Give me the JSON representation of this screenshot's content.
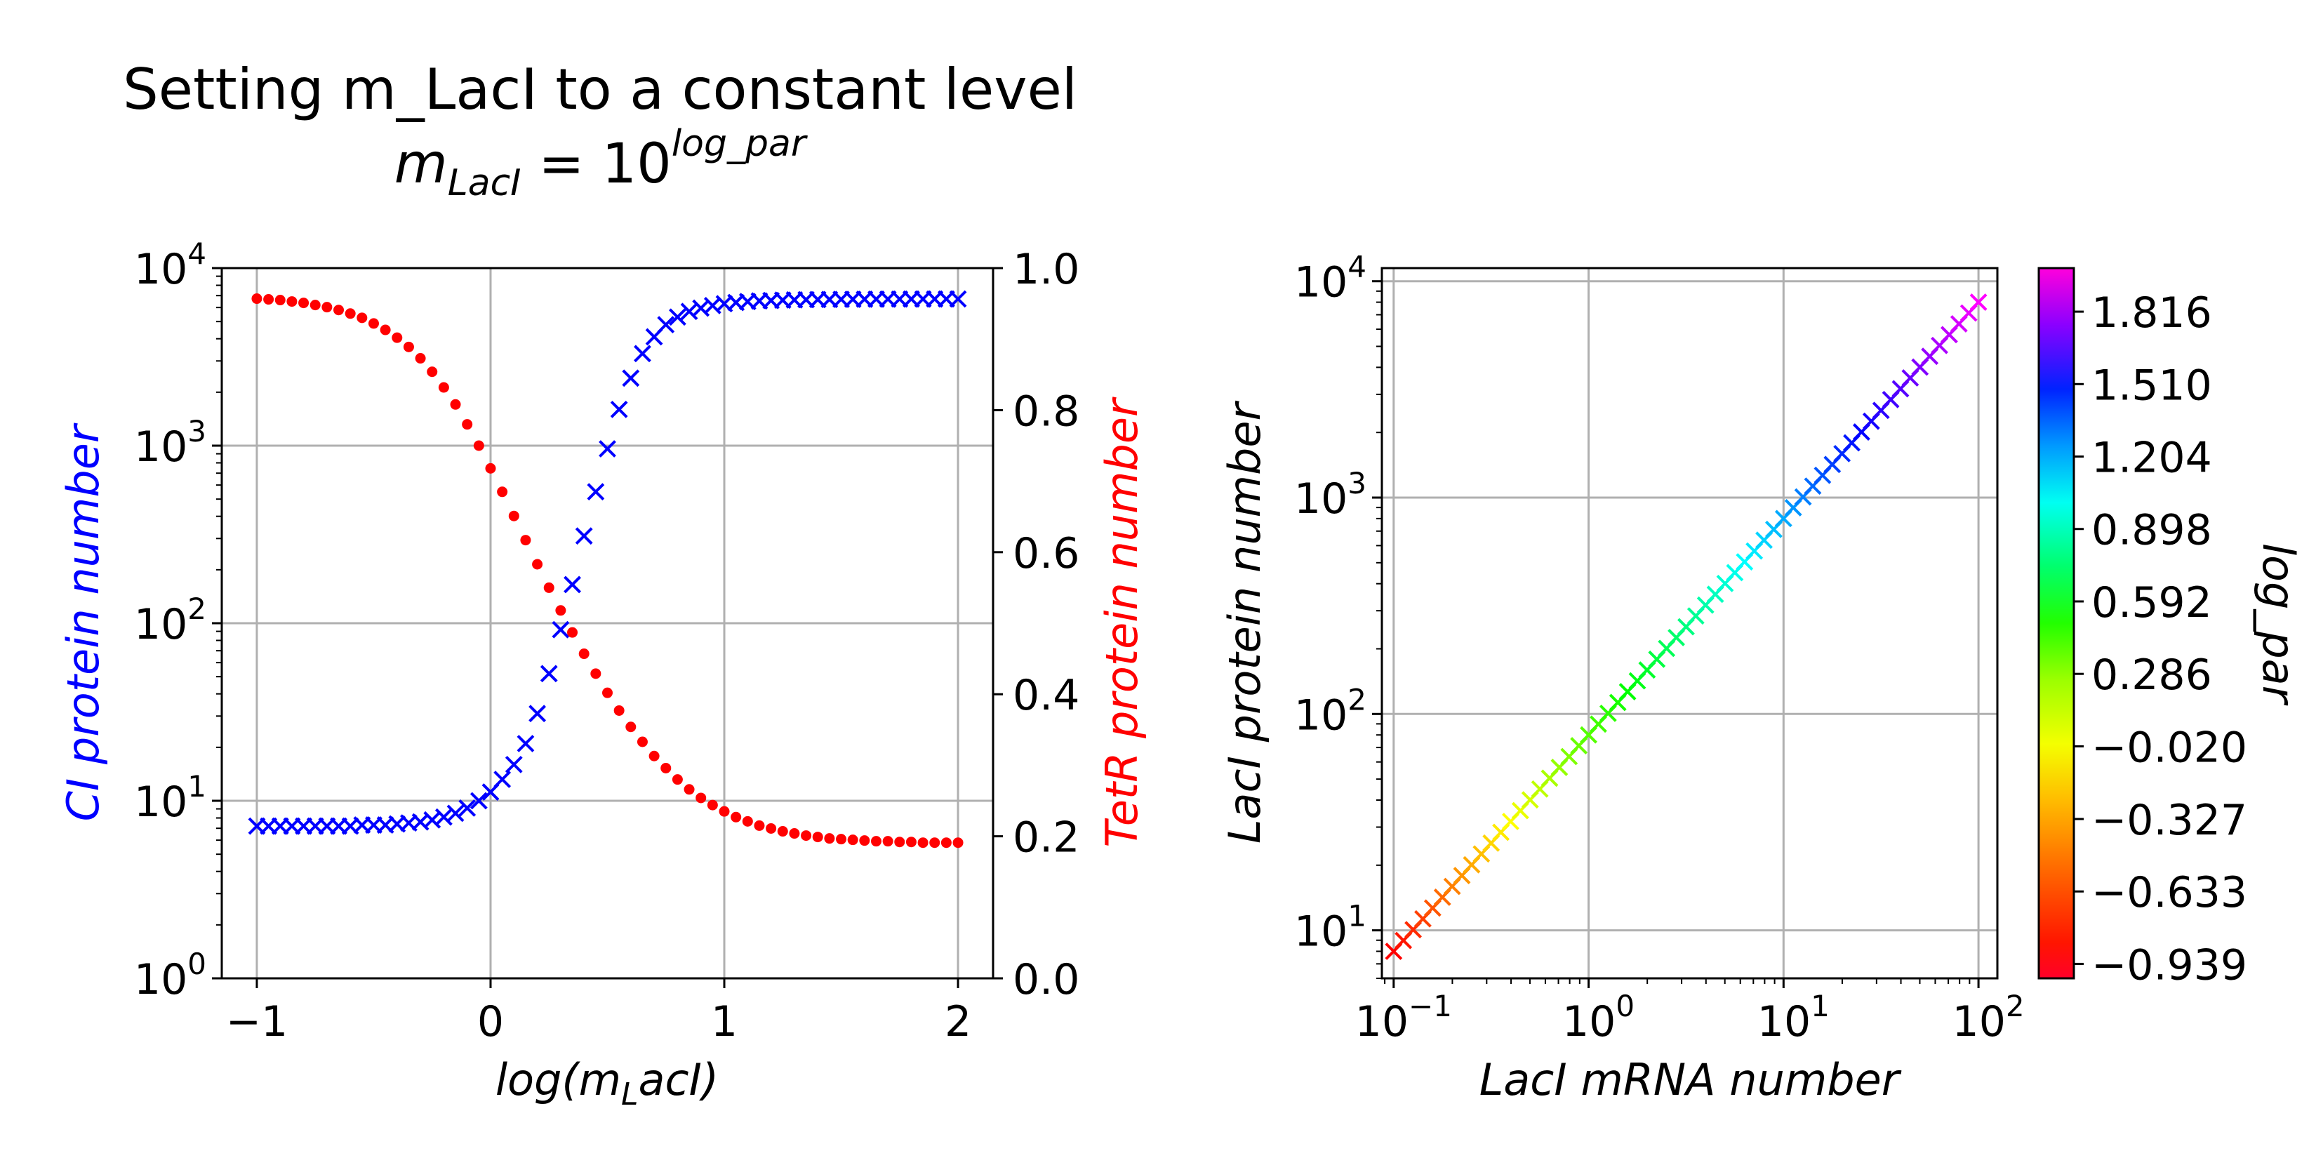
{
  "title": {
    "line1": "Setting m_LacI to a constant level",
    "formula_m": "m",
    "formula_sub": "LacI",
    "formula_eq": " = 10",
    "formula_sup": "log_par"
  },
  "chart_data": [
    {
      "type": "scatter",
      "xlabel": "log(m_LacI)",
      "xlabel_main": "log(m",
      "xlabel_sub": "L",
      "xlabel_tail": "acI)",
      "ylabel": "CI protein number",
      "ylabel_right": "TetR protein number",
      "xlim": [
        -1.15,
        2.15
      ],
      "ylim_left": [
        1,
        10000
      ],
      "ylim_right": [
        0.0,
        1.0
      ],
      "yscale_left": "log",
      "grid": true,
      "x_ticks": [
        "−1",
        "0",
        "1",
        "2"
      ],
      "x_tick_values": [
        -1,
        0,
        1,
        2
      ],
      "y_ticks_left": [
        {
          "base": "10",
          "exp": "0",
          "value": 1
        },
        {
          "base": "10",
          "exp": "1",
          "value": 10
        },
        {
          "base": "10",
          "exp": "2",
          "value": 100
        },
        {
          "base": "10",
          "exp": "3",
          "value": 1000
        },
        {
          "base": "10",
          "exp": "4",
          "value": 10000
        }
      ],
      "y_ticks_right": [
        "0.0",
        "0.2",
        "0.4",
        "0.6",
        "0.8",
        "1.0"
      ],
      "y_tick_values_right": [
        0.0,
        0.2,
        0.4,
        0.6,
        0.8,
        1.0
      ],
      "series": [
        {
          "marker": "x",
          "color": "#0000ff",
          "axis": "left",
          "x": [
            -1.0,
            -0.95,
            -0.9,
            -0.85,
            -0.8,
            -0.75,
            -0.7,
            -0.65,
            -0.6,
            -0.55,
            -0.5,
            -0.45,
            -0.4,
            -0.35,
            -0.3,
            -0.25,
            -0.2,
            -0.15,
            -0.1,
            -0.05,
            0.0,
            0.05,
            0.1,
            0.15,
            0.2,
            0.25,
            0.3,
            0.35,
            0.4,
            0.45,
            0.5,
            0.55,
            0.6,
            0.65,
            0.7,
            0.75,
            0.8,
            0.85,
            0.9,
            0.95,
            1.0,
            1.05,
            1.1,
            1.15,
            1.2,
            1.25,
            1.3,
            1.35,
            1.4,
            1.45,
            1.5,
            1.55,
            1.6,
            1.65,
            1.7,
            1.75,
            1.8,
            1.85,
            1.9,
            1.95,
            2.0
          ],
          "y": [
            7.2,
            7.2,
            7.2,
            7.2,
            7.2,
            7.2,
            7.2,
            7.2,
            7.2,
            7.3,
            7.3,
            7.3,
            7.4,
            7.5,
            7.6,
            7.8,
            8.1,
            8.5,
            9.1,
            10.0,
            11.2,
            13.2,
            16.0,
            21.0,
            31.0,
            52.0,
            92.0,
            165.0,
            310.0,
            550.0,
            960.0,
            1600.0,
            2400.0,
            3300.0,
            4100.0,
            4800.0,
            5300.0,
            5700.0,
            5950.0,
            6150.0,
            6300.0,
            6400.0,
            6480.0,
            6530.0,
            6570.0,
            6600.0,
            6620.0,
            6640.0,
            6650.0,
            6660.0,
            6670.0,
            6675.0,
            6680.0,
            6685.0,
            6690.0,
            6692.0,
            6694.0,
            6696.0,
            6698.0,
            6699.0,
            6700.0
          ]
        },
        {
          "marker": "dot",
          "color": "#ff0000",
          "axis": "right",
          "x": [
            -1.0,
            -0.95,
            -0.9,
            -0.85,
            -0.8,
            -0.75,
            -0.7,
            -0.65,
            -0.6,
            -0.55,
            -0.5,
            -0.45,
            -0.4,
            -0.35,
            -0.3,
            -0.25,
            -0.2,
            -0.15,
            -0.1,
            -0.05,
            0.0,
            0.05,
            0.1,
            0.15,
            0.2,
            0.25,
            0.3,
            0.35,
            0.4,
            0.45,
            0.5,
            0.55,
            0.6,
            0.65,
            0.7,
            0.75,
            0.8,
            0.85,
            0.9,
            0.95,
            1.0,
            1.05,
            1.1,
            1.15,
            1.2,
            1.25,
            1.3,
            1.35,
            1.4,
            1.45,
            1.5,
            1.55,
            1.6,
            1.65,
            1.7,
            1.75,
            1.8,
            1.85,
            1.9,
            1.95,
            2.0
          ],
          "y": [
            0.957,
            0.956,
            0.955,
            0.953,
            0.951,
            0.948,
            0.945,
            0.941,
            0.936,
            0.93,
            0.922,
            0.913,
            0.902,
            0.889,
            0.873,
            0.854,
            0.832,
            0.808,
            0.78,
            0.75,
            0.718,
            0.685,
            0.651,
            0.617,
            0.583,
            0.55,
            0.518,
            0.487,
            0.457,
            0.429,
            0.402,
            0.377,
            0.354,
            0.333,
            0.313,
            0.296,
            0.28,
            0.266,
            0.254,
            0.244,
            0.235,
            0.227,
            0.221,
            0.215,
            0.211,
            0.207,
            0.204,
            0.201,
            0.199,
            0.197,
            0.196,
            0.195,
            0.194,
            0.193,
            0.193,
            0.192,
            0.192,
            0.191,
            0.191,
            0.191,
            0.191
          ]
        }
      ]
    },
    {
      "type": "scatter",
      "xlabel": "LacI mRNA number",
      "ylabel": "LacI protein number",
      "xscale": "log",
      "yscale": "log",
      "xlim": [
        0.087,
        125
      ],
      "ylim": [
        6.0,
        11500
      ],
      "grid": true,
      "x_ticks": [
        {
          "base": "10",
          "exp": "−1",
          "value": 0.1
        },
        {
          "base": "10",
          "exp": "0",
          "value": 1
        },
        {
          "base": "10",
          "exp": "1",
          "value": 10
        },
        {
          "base": "10",
          "exp": "2",
          "value": 100
        }
      ],
      "y_ticks": [
        {
          "base": "10",
          "exp": "1",
          "value": 10
        },
        {
          "base": "10",
          "exp": "2",
          "value": 100
        },
        {
          "base": "10",
          "exp": "3",
          "value": 1000
        },
        {
          "base": "10",
          "exp": "4",
          "value": 10000
        }
      ],
      "marker": "x",
      "color_by": "log_par",
      "log_par_range": [
        -1.0,
        2.0
      ],
      "n_points": 61,
      "relation": "LacI protein number = 80 × LacI mRNA number",
      "x_start": 0.1,
      "x_end": 100,
      "y_start": 8,
      "y_end": 8000,
      "colorbar": {
        "label": "log_par",
        "colormap": "gist_rainbow",
        "range": [
          -1.0,
          2.0
        ],
        "ticks": [
          "−0.939",
          "−0.633",
          "−0.327",
          "−0.020",
          "0.286",
          "0.592",
          "0.898",
          "1.204",
          "1.510",
          "1.816"
        ],
        "tick_values": [
          -0.939,
          -0.633,
          -0.327,
          -0.02,
          0.286,
          0.592,
          0.898,
          1.204,
          1.51,
          1.816
        ]
      }
    }
  ],
  "colors": {
    "left_axis_label": "#0000ff",
    "right_axis_label": "#ff0000",
    "grid": "#b0b0b0"
  }
}
